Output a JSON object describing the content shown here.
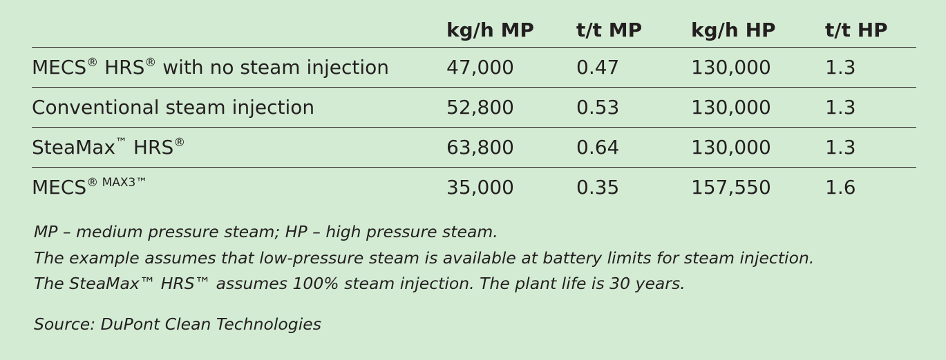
{
  "table": {
    "headers": [
      "",
      "kg/h MP",
      "t/t MP",
      "kg/h HP",
      "t/t HP"
    ],
    "rows": [
      {
        "label_main": "MECS",
        "label_mark1": "®",
        "label_mid": " HRS",
        "label_mark2": "®",
        "label_tail": " with no steam injection",
        "values": [
          "47,000",
          "0.47",
          "130,000",
          "1.3"
        ]
      },
      {
        "label_main": "Conventional steam injection",
        "label_mark1": "",
        "label_mid": "",
        "label_mark2": "",
        "label_tail": "",
        "values": [
          "52,800",
          "0.53",
          "130,000",
          "1.3"
        ]
      },
      {
        "label_main": "SteaMax",
        "label_mark1": "™",
        "label_mid": " HRS",
        "label_mark2": "®",
        "label_tail": "",
        "values": [
          "63,800",
          "0.64",
          "130,000",
          "1.3"
        ]
      },
      {
        "label_main": "MECS",
        "label_mark1": "®",
        "label_mid": "",
        "label_mark2": " MAX3™",
        "label_tail": "",
        "values": [
          "35,000",
          "0.35",
          "157,550",
          "1.6"
        ]
      }
    ]
  },
  "notes": [
    "MP – medium pressure steam; HP – high pressure steam.",
    "The example assumes that low-pressure steam is available at battery limits for steam injection.",
    "The SteaMax™ HRS™ assumes 100% steam injection.  The plant life is 30 years."
  ],
  "source": "Source: DuPont Clean Technologies"
}
